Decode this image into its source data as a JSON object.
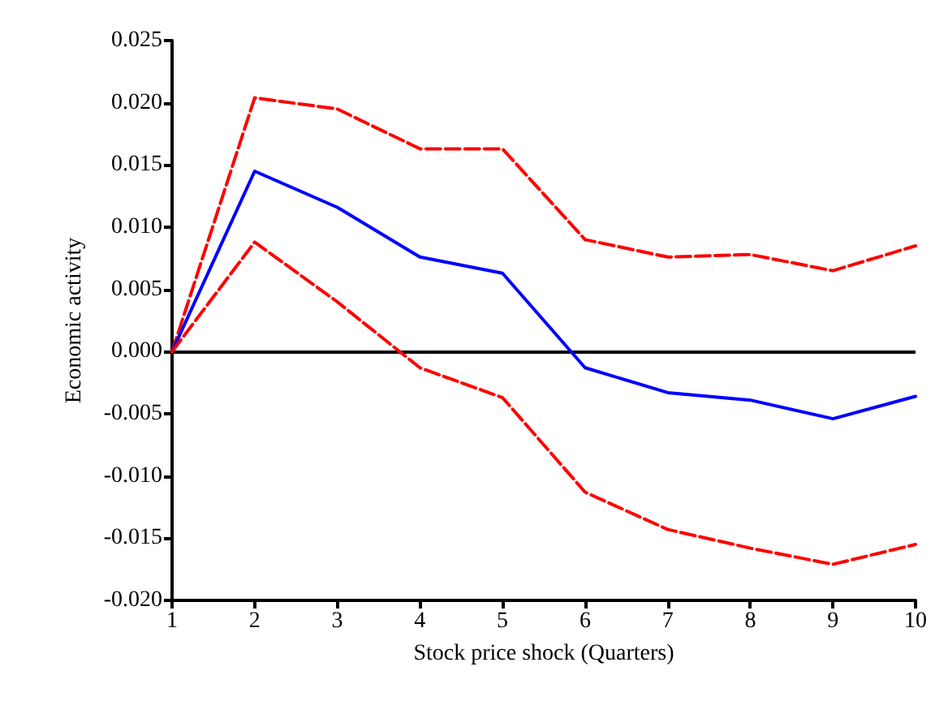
{
  "chart_data": {
    "type": "line",
    "xlabel": "Stock price shock (Quarters)",
    "ylabel": "Economic activity",
    "x": [
      1,
      2,
      3,
      4,
      5,
      6,
      7,
      8,
      9,
      10
    ],
    "series": [
      {
        "color": "#ff0000",
        "line_style": "dashed",
        "values": [
          0,
          0.0204,
          0.0195,
          0.0163,
          0.0163,
          0.009,
          0.0076,
          0.0078,
          0.0065,
          0.0085
        ]
      },
      {
        "color": "#0000ff",
        "line_style": "solid",
        "values": [
          0,
          0.0145,
          0.0116,
          0.0076,
          0.0063,
          -0.0013,
          -0.0033,
          -0.0039,
          -0.0054,
          -0.0036
        ]
      },
      {
        "color": "#ff0000",
        "line_style": "dashed",
        "values": [
          0,
          0.0088,
          0.004,
          -0.0013,
          -0.0037,
          -0.0113,
          -0.0143,
          -0.0158,
          -0.0171,
          -0.0155
        ]
      }
    ],
    "xlim": [
      1,
      10
    ],
    "xticks": [
      1,
      2,
      3,
      4,
      5,
      6,
      7,
      8,
      9,
      10
    ],
    "ylim": [
      -0.02,
      0.025
    ],
    "yticks": [
      {
        "value": -0.02,
        "label": "-0.020"
      },
      {
        "value": -0.015,
        "label": "-0.015"
      },
      {
        "value": -0.01,
        "label": "-0.010"
      },
      {
        "value": -0.005,
        "label": "-0.005"
      },
      {
        "value": 0,
        "label": "0.000"
      },
      {
        "value": 0.005,
        "label": "0.005"
      },
      {
        "value": 0.01,
        "label": "0.010"
      },
      {
        "value": 0.015,
        "label": "0.015"
      },
      {
        "value": 0.02,
        "label": "0.020"
      },
      {
        "value": 0.025,
        "label": "0.025"
      }
    ],
    "ref_lines": [
      {
        "axis": "y",
        "value": 0,
        "color": "#000000",
        "line_style": "solid"
      }
    ],
    "grid": false,
    "marker": "none"
  }
}
